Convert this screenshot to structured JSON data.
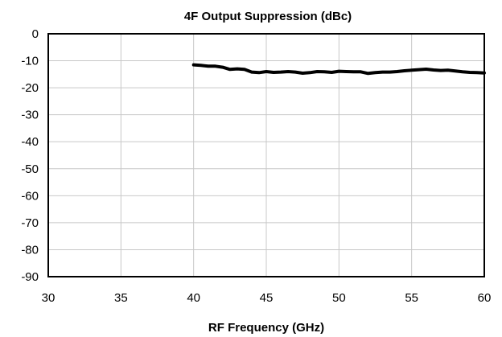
{
  "chart_data": {
    "type": "line",
    "title": "4F Output Suppression (dBc)",
    "xlabel": "RF Frequency (GHz)",
    "ylabel": "",
    "xlim": [
      30,
      60
    ],
    "ylim": [
      -90,
      0
    ],
    "x_ticks": [
      30,
      35,
      40,
      45,
      50,
      55,
      60
    ],
    "y_ticks": [
      0,
      -10,
      -20,
      -30,
      -40,
      -50,
      -60,
      -70,
      -80,
      -90
    ],
    "grid": true,
    "legend": "none",
    "colors": {
      "series": "#000000",
      "grid": "#c8c8c8",
      "frame": "#000000"
    },
    "series": [
      {
        "x": [
          40,
          40.5,
          41,
          41.5,
          42,
          42.5,
          43,
          43.5,
          44,
          44.5,
          45,
          45.5,
          46,
          46.5,
          47,
          47.5,
          48,
          48.5,
          49,
          49.5,
          50,
          50.5,
          51,
          51.5,
          52,
          52.5,
          53,
          53.5,
          54,
          54.5,
          55,
          55.5,
          56,
          56.5,
          57,
          57.5,
          58,
          58.5,
          59,
          59.5,
          60
        ],
        "y": [
          -11.5,
          -11.7,
          -12.0,
          -12.0,
          -12.4,
          -13.2,
          -13.0,
          -13.2,
          -14.2,
          -14.4,
          -14.0,
          -14.3,
          -14.2,
          -14.0,
          -14.2,
          -14.6,
          -14.4,
          -14.0,
          -14.1,
          -14.3,
          -13.9,
          -14.0,
          -14.1,
          -14.1,
          -14.7,
          -14.4,
          -14.2,
          -14.2,
          -14.0,
          -13.7,
          -13.5,
          -13.3,
          -13.1,
          -13.4,
          -13.6,
          -13.5,
          -13.8,
          -14.1,
          -14.3,
          -14.4,
          -14.5
        ]
      }
    ]
  }
}
